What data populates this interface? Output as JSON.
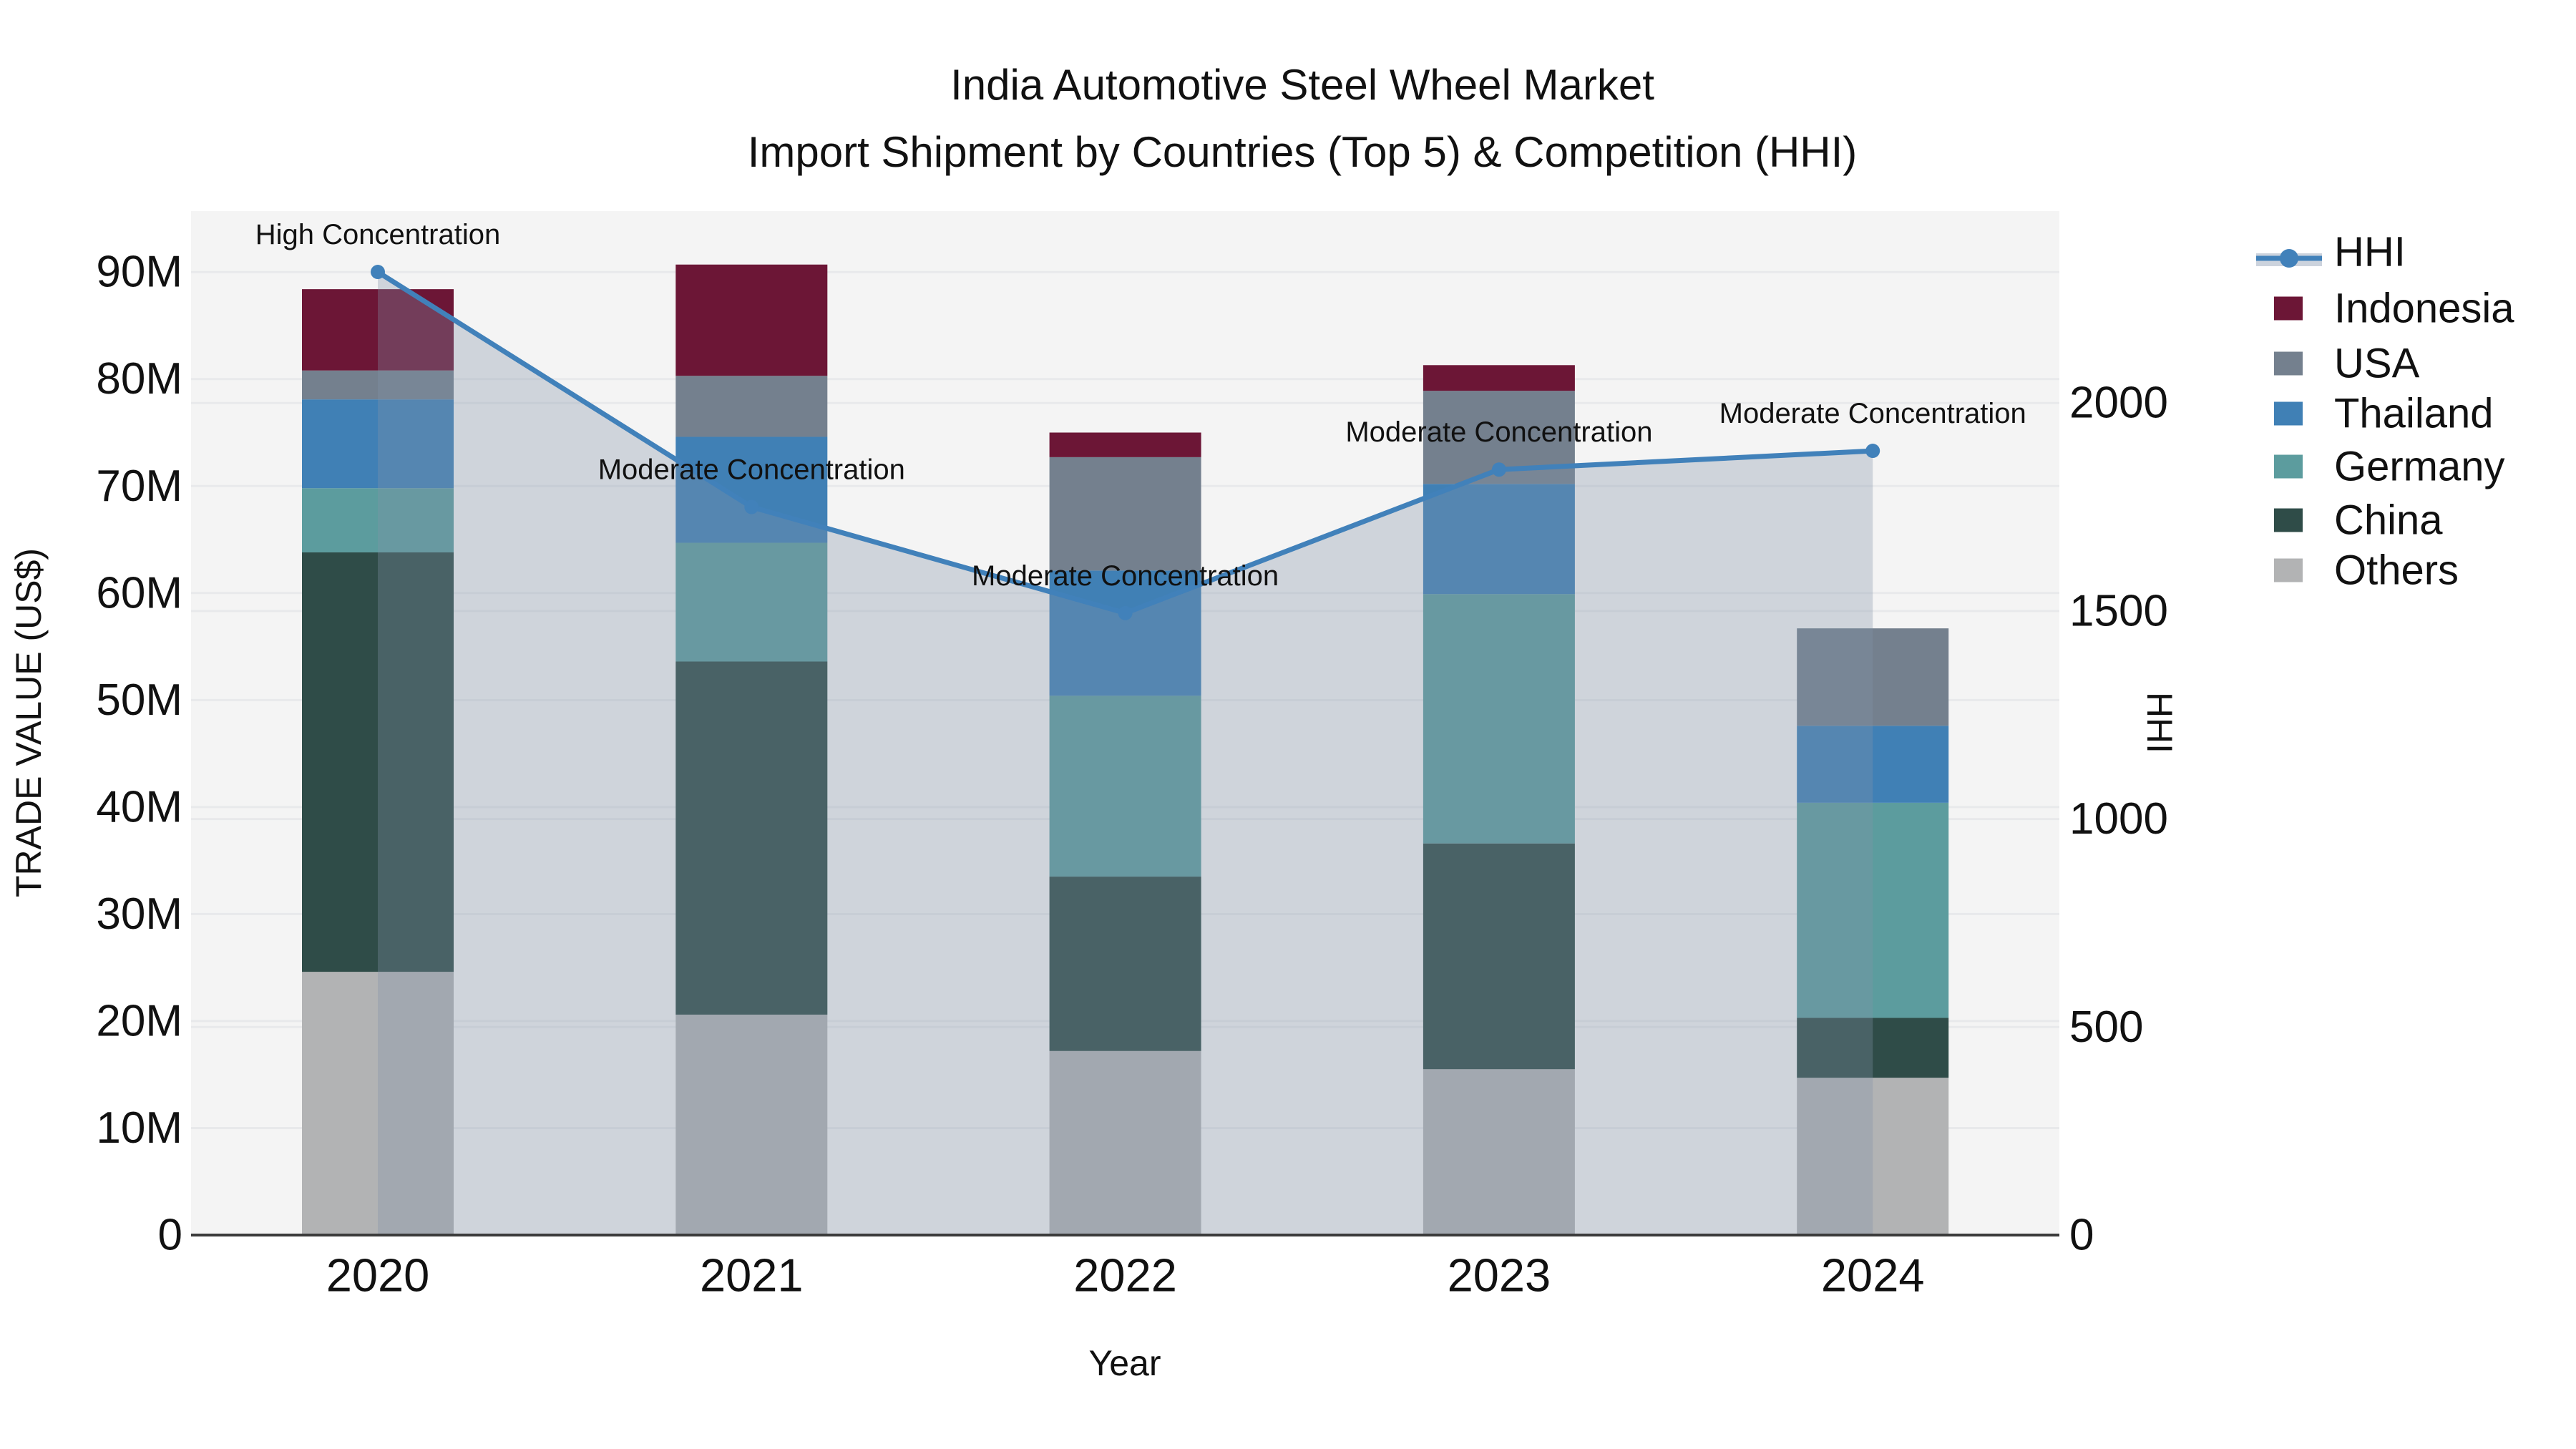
{
  "title": {
    "line1": "India Automotive Steel Wheel Market",
    "line2": "Import Shipment by Countries (Top 5) & Competition (HHI)"
  },
  "chart_data": {
    "type": "bar",
    "subtype": "stacked-bars-with-hhi-line-area",
    "categories": [
      "2020",
      "2021",
      "2022",
      "2023",
      "2024"
    ],
    "xlabel": "Year",
    "ylabel_left": "TRADE VALUE (US$)",
    "ylabel_right": "HHI",
    "value_unit": "millions of US$",
    "yticks_left_labels": [
      "0",
      "10M",
      "20M",
      "30M",
      "40M",
      "50M",
      "60M",
      "70M",
      "80M",
      "90M"
    ],
    "yticks_left_values": [
      0,
      10,
      20,
      30,
      40,
      50,
      60,
      70,
      80,
      90
    ],
    "yticks_right_labels": [
      "0",
      "500",
      "1000",
      "1500",
      "2000"
    ],
    "yticks_right_values": [
      0,
      500,
      1000,
      1500,
      2000
    ],
    "ylim_left_millions": [
      0,
      95.7
    ],
    "ylim_right": [
      0,
      2461
    ],
    "grid": true,
    "legend_position": "right-outside",
    "stack_order_note": "series listed bottom to top",
    "series": [
      {
        "name": "Others",
        "color": "#b2b3b4",
        "values": [
          24.6,
          20.6,
          17.2,
          15.5,
          14.7
        ]
      },
      {
        "name": "China",
        "color": "#2f4c48",
        "values": [
          39.2,
          33.0,
          16.3,
          21.1,
          5.6
        ]
      },
      {
        "name": "Germany",
        "color": "#5c9c9e",
        "values": [
          6.0,
          11.1,
          16.9,
          23.3,
          20.1
        ]
      },
      {
        "name": "Thailand",
        "color": "#4080b5",
        "values": [
          8.3,
          9.9,
          11.7,
          10.3,
          7.2
        ]
      },
      {
        "name": "USA",
        "color": "#74808e",
        "values": [
          2.7,
          5.7,
          10.6,
          8.7,
          9.1
        ]
      },
      {
        "name": "Indonesia",
        "color": "#6c1636",
        "values": [
          7.6,
          10.4,
          2.3,
          2.4,
          0
        ]
      }
    ],
    "bar_totals_millions": [
      88.4,
      90.7,
      75.0,
      81.3,
      56.7
    ],
    "line_series": {
      "name": "HHI",
      "values": [
        2315,
        1750,
        1495,
        1840,
        1885
      ],
      "color": "#4181ba",
      "area_fill": "rgba(130,145,168,0.32)",
      "legend_band_color": "#ccd3dd"
    },
    "annotations": [
      "High Concentration",
      "Moderate Concentration",
      "Moderate Concentration",
      "Moderate Concentration",
      "Moderate Concentration"
    ],
    "legend_entries": [
      "HHI",
      "Indonesia",
      "USA",
      "Thailand",
      "Germany",
      "China",
      "Others"
    ],
    "plot_background": "#f4f4f4",
    "gridline_color": "#e8e9eb",
    "axis_line_color": "#3b3b3b",
    "text_color": "#111111"
  }
}
